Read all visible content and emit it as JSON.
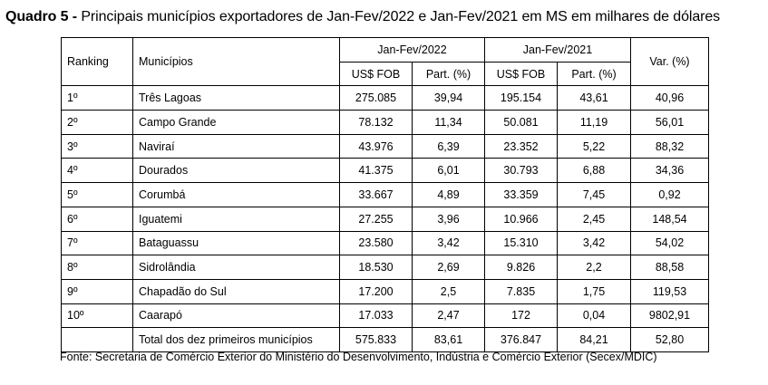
{
  "title": {
    "bold": "Quadro 5 -",
    "text": " Principais municípios exportadores de Jan-Fev/2022 e Jan-Fev/2021 em MS em milhares de dólares"
  },
  "table": {
    "header": {
      "ranking": "Ranking",
      "municipios": "Municípios",
      "period_2022": "Jan-Fev/2022",
      "period_2021": "Jan-Fev/2021",
      "var": "Var. (%)",
      "usd_fob_2022": "US$ FOB",
      "part_2022": "Part. (%)",
      "usd_fob_2021": "US$ FOB",
      "part_2021": "Part. (%)"
    },
    "rows": [
      {
        "rank": "1º",
        "municipio": "Três Lagoas",
        "usd2022": "275.085",
        "part2022": "39,94",
        "usd2021": "195.154",
        "part2021": "43,61",
        "var": "40,96"
      },
      {
        "rank": "2º",
        "municipio": "Campo Grande",
        "usd2022": "78.132",
        "part2022": "11,34",
        "usd2021": "50.081",
        "part2021": "11,19",
        "var": "56,01"
      },
      {
        "rank": "3º",
        "municipio": "Naviraí",
        "usd2022": "43.976",
        "part2022": "6,39",
        "usd2021": "23.352",
        "part2021": "5,22",
        "var": "88,32"
      },
      {
        "rank": "4º",
        "municipio": "Dourados",
        "usd2022": "41.375",
        "part2022": "6,01",
        "usd2021": "30.793",
        "part2021": "6,88",
        "var": "34,36"
      },
      {
        "rank": "5º",
        "municipio": "Corumbá",
        "usd2022": "33.667",
        "part2022": "4,89",
        "usd2021": "33.359",
        "part2021": "7,45",
        "var": "0,92"
      },
      {
        "rank": "6º",
        "municipio": "Iguatemi",
        "usd2022": "27.255",
        "part2022": "3,96",
        "usd2021": "10.966",
        "part2021": "2,45",
        "var": "148,54"
      },
      {
        "rank": "7º",
        "municipio": "Bataguassu",
        "usd2022": "23.580",
        "part2022": "3,42",
        "usd2021": "15.310",
        "part2021": "3,42",
        "var": "54,02"
      },
      {
        "rank": "8º",
        "municipio": "Sidrolândia",
        "usd2022": "18.530",
        "part2022": "2,69",
        "usd2021": "9.826",
        "part2021": "2,2",
        "var": "88,58"
      },
      {
        "rank": "9º",
        "municipio": "Chapadão do Sul",
        "usd2022": "17.200",
        "part2022": "2,5",
        "usd2021": "7.835",
        "part2021": "1,75",
        "var": "119,53"
      },
      {
        "rank": "10º",
        "municipio": "Caarapó",
        "usd2022": "17.033",
        "part2022": "2,47",
        "usd2021": "172",
        "part2021": "0,04",
        "var": "9802,91"
      }
    ],
    "total": {
      "rank": "",
      "municipio": "Total dos dez primeiros municípios",
      "usd2022": "575.833",
      "part2022": "83,61",
      "usd2021": "376.847",
      "part2021": "84,21",
      "var": "52,80"
    }
  },
  "source": "Fonte: Secretaria de Comércio Exterior do Ministério do Desenvolvimento, Indústria e Comércio Exterior (Secex/MDIC)"
}
